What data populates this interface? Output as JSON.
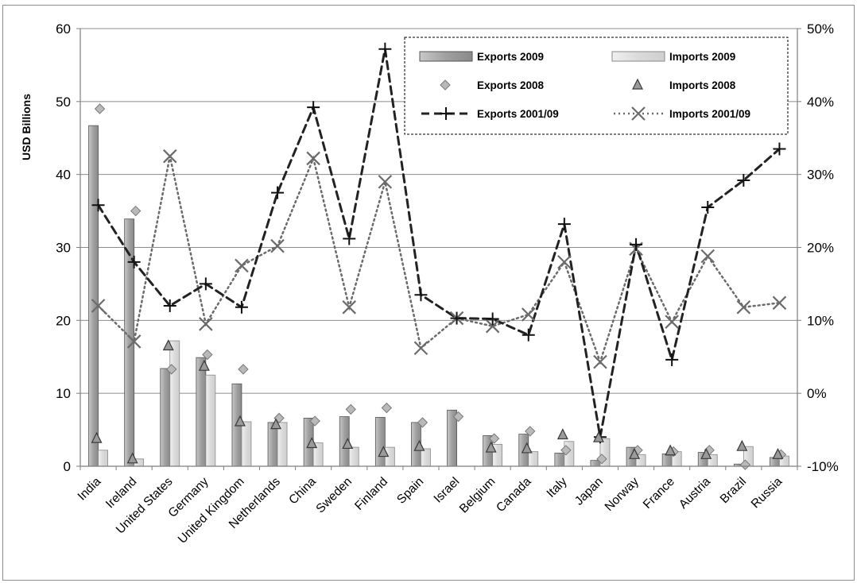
{
  "chart_data": {
    "type": "bar",
    "ylabel": "USD Billions",
    "y_left": {
      "min": 0,
      "max": 60,
      "ticks": [
        "0",
        "10",
        "20",
        "30",
        "40",
        "50",
        "60"
      ]
    },
    "y_right": {
      "min": -10,
      "max": 50,
      "ticks": [
        "-10%",
        "0%",
        "10%",
        "20%",
        "30%",
        "40%",
        "50%"
      ]
    },
    "grid": true,
    "legend_position": "top-right",
    "categories": [
      "India",
      "Ireland",
      "United States",
      "Germany",
      "United Kingdom",
      "Netherlands",
      "China",
      "Sweden",
      "Finland",
      "Spain",
      "Israel",
      "Belgium",
      "Canada",
      "Italy",
      "Japan",
      "Norway",
      "France",
      "Austria",
      "Brazil",
      "Russia"
    ],
    "series": [
      {
        "name": "Exports 2009",
        "kind": "bar",
        "axis": "left",
        "color": "#a6a6a6",
        "values": [
          46.7,
          33.9,
          13.4,
          14.9,
          11.3,
          6.0,
          6.6,
          6.8,
          6.7,
          6.0,
          7.7,
          4.2,
          4.4,
          1.8,
          0.8,
          2.6,
          1.7,
          1.9,
          0.3,
          1.2
        ]
      },
      {
        "name": "Imports 2009",
        "kind": "bar",
        "axis": "left",
        "color": "#dcdcdc",
        "values": [
          2.2,
          1.0,
          17.2,
          12.5,
          6.1,
          6.0,
          3.2,
          2.6,
          2.6,
          2.4,
          0,
          3.0,
          2.0,
          3.4,
          3.8,
          1.6,
          2.0,
          1.6,
          2.7,
          1.4
        ]
      },
      {
        "name": "Exports 2008",
        "kind": "marker",
        "axis": "left",
        "color": "#a6a6a6",
        "values": [
          49.0,
          35.0,
          13.3,
          15.3,
          13.3,
          6.6,
          6.2,
          7.8,
          8.0,
          6.0,
          6.8,
          3.8,
          4.8,
          2.2,
          1.0,
          2.2,
          2.0,
          2.2,
          0.2,
          1.6
        ]
      },
      {
        "name": "Imports 2008",
        "kind": "marker",
        "axis": "left",
        "color": "#a6a6a6",
        "values": [
          3.8,
          1.0,
          16.5,
          13.7,
          6.1,
          5.7,
          3.1,
          3.0,
          1.9,
          2.7,
          null,
          2.5,
          2.4,
          4.3,
          3.9,
          1.6,
          2.1,
          1.6,
          2.7,
          1.6
        ]
      },
      {
        "name": "Exports 2001/09",
        "kind": "line",
        "axis": "right",
        "color": "#222222",
        "values": [
          25.8,
          18.0,
          12.0,
          15.0,
          11.8,
          27.5,
          39.2,
          21.2,
          47.2,
          13.5,
          10.3,
          10.2,
          8.0,
          23.2,
          -6.0,
          20.4,
          4.6,
          25.5,
          29.2,
          33.5
        ]
      },
      {
        "name": "Imports 2001/09",
        "kind": "line",
        "axis": "right",
        "color": "#666666",
        "values": [
          12.0,
          7.1,
          32.5,
          9.5,
          17.5,
          20.2,
          32.2,
          11.8,
          29.0,
          6.2,
          10.3,
          9.2,
          10.8,
          18.0,
          4.3,
          19.8,
          9.8,
          18.8,
          11.8,
          12.4
        ]
      }
    ]
  }
}
